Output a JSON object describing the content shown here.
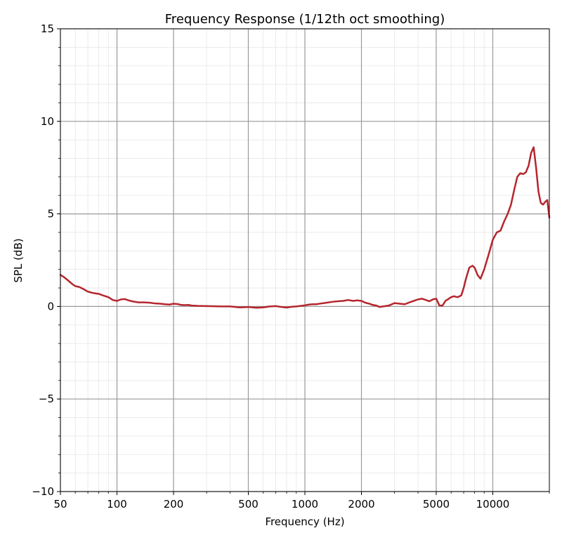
{
  "chart_data": {
    "type": "line",
    "title": "Frequency Response (1/12th oct smoothing)",
    "xlabel": "Frequency (Hz)",
    "ylabel": "SPL (dB)",
    "xscale": "log",
    "xlim": [
      50,
      20000
    ],
    "ylim": [
      -10,
      15
    ],
    "grid": true,
    "minor_grid": true,
    "x_ticks": [
      {
        "value": 50,
        "label": "50"
      },
      {
        "value": 100,
        "label": "100"
      },
      {
        "value": 200,
        "label": "200"
      },
      {
        "value": 500,
        "label": "500"
      },
      {
        "value": 1000,
        "label": "1000"
      },
      {
        "value": 2000,
        "label": "2000"
      },
      {
        "value": 5000,
        "label": "5000"
      },
      {
        "value": 10000,
        "label": "10000"
      }
    ],
    "y_ticks": [
      {
        "value": -10,
        "label": "−10"
      },
      {
        "value": -5,
        "label": "−5"
      },
      {
        "value": 0,
        "label": "0"
      },
      {
        "value": 5,
        "label": "5"
      },
      {
        "value": 10,
        "label": "10"
      },
      {
        "value": 15,
        "label": "15"
      }
    ],
    "series": [
      {
        "color": "#b5262d",
        "x": [
          50,
          52,
          55,
          58,
          60,
          63,
          66,
          70,
          75,
          80,
          85,
          90,
          95,
          100,
          105,
          110,
          115,
          120,
          130,
          140,
          150,
          160,
          170,
          180,
          190,
          200,
          210,
          220,
          230,
          240,
          250,
          270,
          300,
          330,
          360,
          400,
          450,
          500,
          550,
          600,
          650,
          700,
          750,
          800,
          850,
          900,
          950,
          1000,
          1050,
          1100,
          1150,
          1200,
          1300,
          1400,
          1500,
          1600,
          1700,
          1800,
          1900,
          2000,
          2100,
          2200,
          2300,
          2400,
          2500,
          2600,
          2800,
          3000,
          3200,
          3400,
          3600,
          3800,
          4000,
          4200,
          4400,
          4600,
          4800,
          5000,
          5200,
          5400,
          5600,
          5800,
          6000,
          6200,
          6500,
          6800,
          7000,
          7200,
          7500,
          7800,
          8000,
          8300,
          8600,
          9000,
          9500,
          10000,
          10500,
          11000,
          11500,
          12000,
          12500,
          13000,
          13500,
          14000,
          14500,
          15000,
          15500,
          16000,
          16500,
          17000,
          17500,
          18000,
          18500,
          19000,
          19500,
          20000
        ],
        "y": [
          1.7,
          1.6,
          1.4,
          1.2,
          1.1,
          1.05,
          0.95,
          0.8,
          0.72,
          0.68,
          0.58,
          0.5,
          0.35,
          0.3,
          0.38,
          0.4,
          0.33,
          0.28,
          0.22,
          0.22,
          0.2,
          0.16,
          0.15,
          0.12,
          0.1,
          0.15,
          0.13,
          0.08,
          0.07,
          0.08,
          0.05,
          0.03,
          0.02,
          0.01,
          0.0,
          0.0,
          -0.05,
          -0.03,
          -0.07,
          -0.05,
          0.0,
          0.02,
          -0.03,
          -0.06,
          -0.02,
          0.0,
          0.03,
          0.06,
          0.1,
          0.12,
          0.12,
          0.15,
          0.2,
          0.25,
          0.28,
          0.3,
          0.35,
          0.3,
          0.33,
          0.3,
          0.2,
          0.15,
          0.08,
          0.05,
          -0.03,
          0.0,
          0.05,
          0.18,
          0.15,
          0.12,
          0.22,
          0.3,
          0.38,
          0.42,
          0.35,
          0.28,
          0.38,
          0.42,
          0.05,
          0.05,
          0.3,
          0.4,
          0.5,
          0.55,
          0.5,
          0.6,
          1.0,
          1.5,
          2.1,
          2.2,
          2.1,
          1.7,
          1.5,
          2.0,
          2.8,
          3.6,
          4.0,
          4.1,
          4.6,
          5.0,
          5.5,
          6.3,
          7.0,
          7.2,
          7.15,
          7.25,
          7.6,
          8.3,
          8.6,
          7.5,
          6.2,
          5.6,
          5.5,
          5.65,
          5.75,
          4.8
        ]
      }
    ]
  }
}
